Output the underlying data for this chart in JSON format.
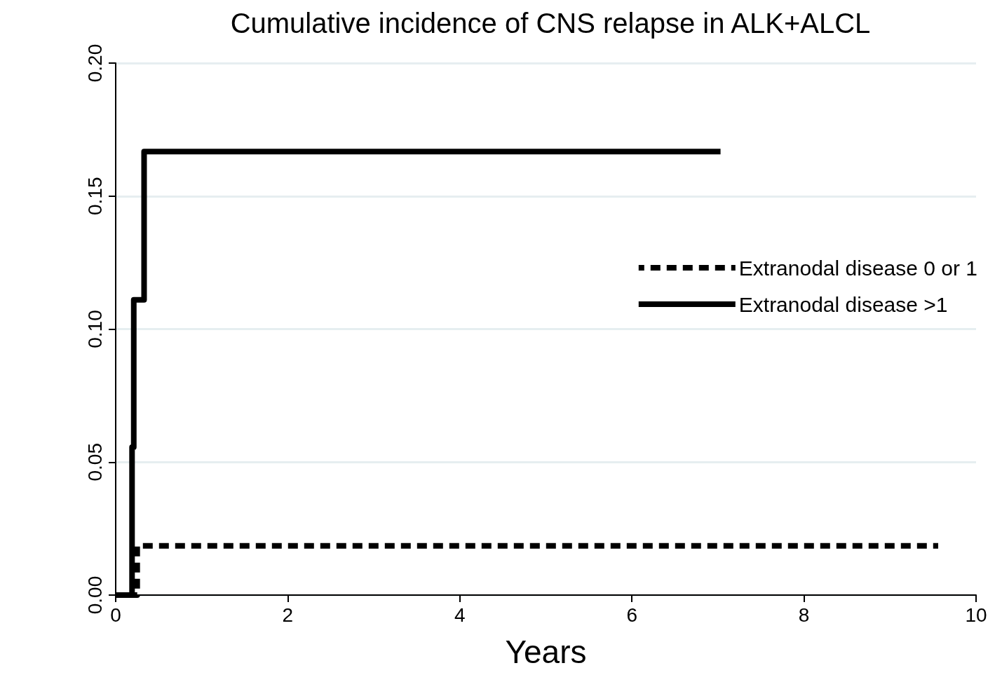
{
  "chart_data": {
    "type": "step",
    "title": "Cumulative incidence of CNS relapse in ALK+ALCL",
    "xlabel": "Years",
    "series": [
      {
        "name": "Extranodal disease 0 or 1",
        "color": "#000000",
        "line_style": "dashed",
        "x": [
          0,
          0.25,
          9.56
        ],
        "values": [
          0,
          0.0185,
          0.0185
        ]
      },
      {
        "name": "Extranodal disease >1",
        "color": "#000000",
        "line_style": "solid",
        "x": [
          0,
          0.19,
          0.21,
          0.33,
          7.03
        ],
        "values": [
          0,
          0.0556,
          0.111,
          0.1667,
          0.1667
        ]
      }
    ],
    "xlim": [
      0,
      10
    ],
    "xticks": [
      0,
      2,
      4,
      6,
      8,
      10
    ],
    "ylim": [
      0,
      0.2
    ],
    "yticks": [
      {
        "value": 0,
        "label": "0.00"
      },
      {
        "value": 0.05,
        "label": "0.05"
      },
      {
        "value": 0.1,
        "label": "0.10"
      },
      {
        "value": 0.15,
        "label": "0.15"
      },
      {
        "value": 0.2,
        "label": "0.20"
      }
    ],
    "grid": "y",
    "legend": "right",
    "marker": "none"
  }
}
